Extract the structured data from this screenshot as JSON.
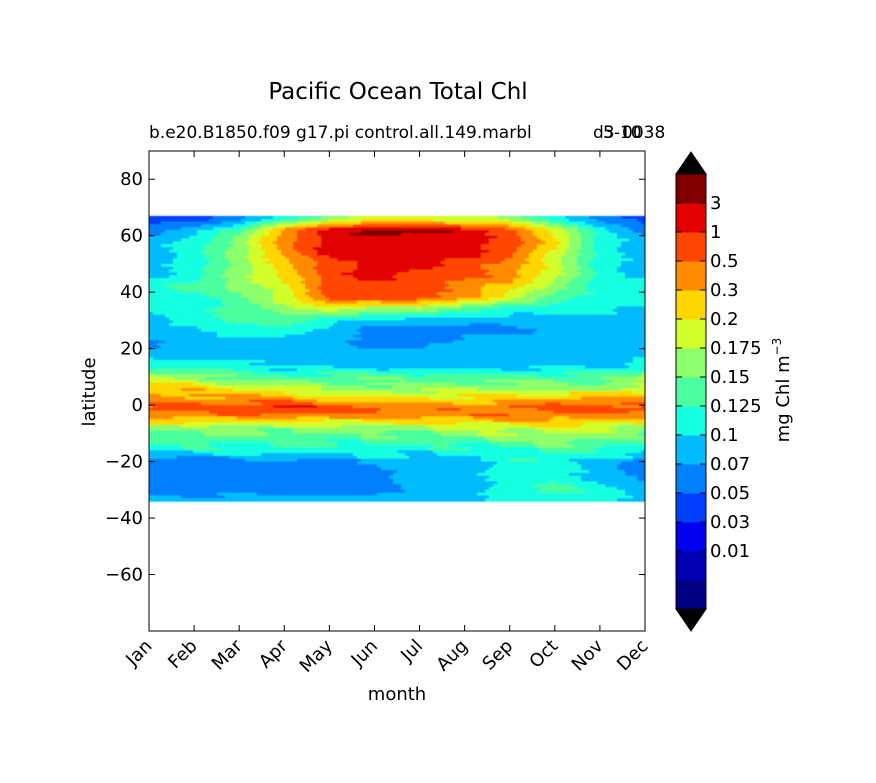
{
  "chart_data": {
    "type": "heatmap",
    "title": "Pacific Ocean Total Chl",
    "subtitle_left": "b.e20.B1850.f09 g17.pi control.all.149.marbl",
    "subtitle_right": "5-10",
    "subtitle_overlap": "d3",
    "subtitle_tail": "0038",
    "xlabel": "month",
    "ylabel": "latitude",
    "x_ticks": [
      "Jan",
      "Feb",
      "Mar",
      "Apr",
      "May",
      "Jun",
      "Jul",
      "Aug",
      "Sep",
      "Oct",
      "Nov",
      "Dec"
    ],
    "x_range": [
      0,
      11
    ],
    "y_ticks": [
      80,
      60,
      40,
      20,
      0,
      -20,
      -40,
      -60
    ],
    "y_range": [
      -80,
      90
    ],
    "data_lat_range": [
      -34,
      67
    ],
    "colorbar": {
      "label": "mg Chl m",
      "label_exponent": "−3",
      "tick_labels": [
        "3",
        "1",
        "0.5",
        "0.3",
        "0.2",
        "0.175",
        "0.15",
        "0.125",
        "0.1",
        "0.07",
        "0.05",
        "0.03",
        "0.01"
      ],
      "colors": [
        "#000080",
        "#0000b2",
        "#0000f1",
        "#0041ff",
        "#0080ff",
        "#00bcff",
        "#16ffe1",
        "#4aff9f",
        "#8cff6a",
        "#d2ff2a",
        "#ffd600",
        "#ff8c00",
        "#ff4600",
        "#e20000",
        "#800000"
      ],
      "over_color": "#000000",
      "under_color": "#000000"
    },
    "bands": [
      {
        "lat": 66,
        "level": [
          3,
          3,
          4,
          6,
          8,
          9,
          9,
          9,
          8,
          6,
          4,
          3
        ]
      },
      {
        "lat": 62,
        "level": [
          4,
          5,
          7,
          11,
          13,
          14,
          14,
          13,
          12,
          9,
          6,
          4
        ]
      },
      {
        "lat": 58,
        "level": [
          5,
          6,
          8,
          11,
          13,
          13,
          13,
          13,
          12,
          10,
          6,
          5
        ]
      },
      {
        "lat": 54,
        "level": [
          5,
          6,
          8,
          11,
          13,
          13,
          13,
          13,
          12,
          9,
          6,
          5
        ]
      },
      {
        "lat": 50,
        "level": [
          5,
          6,
          8,
          10,
          12,
          13,
          13,
          12,
          11,
          9,
          6,
          5
        ]
      },
      {
        "lat": 46,
        "level": [
          5,
          6,
          8,
          10,
          12,
          13,
          12,
          12,
          11,
          9,
          6,
          5
        ]
      },
      {
        "lat": 42,
        "level": [
          6,
          7,
          8,
          9,
          12,
          12,
          12,
          11,
          10,
          8,
          6,
          6
        ]
      },
      {
        "lat": 38,
        "level": [
          6,
          6,
          7,
          9,
          12,
          12,
          12,
          11,
          9,
          7,
          6,
          6
        ]
      },
      {
        "lat": 34,
        "level": [
          6,
          6,
          7,
          8,
          9,
          8,
          8,
          7,
          6,
          6,
          6,
          5
        ]
      },
      {
        "lat": 30,
        "level": [
          5,
          6,
          7,
          7,
          6,
          5,
          5,
          5,
          5,
          5,
          5,
          5
        ]
      },
      {
        "lat": 26,
        "level": [
          5,
          5,
          6,
          6,
          5,
          4,
          4,
          4,
          4,
          5,
          5,
          5
        ]
      },
      {
        "lat": 22,
        "level": [
          4,
          5,
          5,
          5,
          5,
          4,
          4,
          5,
          5,
          5,
          5,
          5
        ]
      },
      {
        "lat": 18,
        "level": [
          5,
          5,
          5,
          5,
          5,
          5,
          5,
          5,
          5,
          5,
          5,
          5
        ]
      },
      {
        "lat": 14,
        "level": [
          6,
          6,
          6,
          5,
          5,
          5,
          5,
          5,
          5,
          5,
          5,
          6
        ]
      },
      {
        "lat": 10,
        "level": [
          9,
          8,
          7,
          7,
          7,
          7,
          7,
          7,
          7,
          7,
          7,
          8
        ]
      },
      {
        "lat": 6,
        "level": [
          10,
          10,
          9,
          9,
          8,
          8,
          8,
          8,
          8,
          8,
          8,
          9
        ]
      },
      {
        "lat": 2,
        "level": [
          11,
          11,
          11,
          11,
          10,
          10,
          10,
          10,
          10,
          11,
          11,
          11
        ]
      },
      {
        "lat": -1,
        "level": [
          12,
          12,
          12,
          13,
          12,
          12,
          11,
          11,
          12,
          12,
          12,
          12
        ]
      },
      {
        "lat": -4,
        "level": [
          11,
          11,
          11,
          11,
          11,
          11,
          11,
          11,
          11,
          11,
          11,
          11
        ]
      },
      {
        "lat": -8,
        "level": [
          8,
          8,
          8,
          8,
          8,
          8,
          8,
          9,
          9,
          9,
          9,
          8
        ]
      },
      {
        "lat": -12,
        "level": [
          7,
          7,
          7,
          7,
          7,
          7,
          7,
          7,
          8,
          8,
          8,
          7
        ]
      },
      {
        "lat": -16,
        "level": [
          6,
          6,
          6,
          6,
          6,
          6,
          6,
          6,
          6,
          7,
          6,
          6
        ]
      },
      {
        "lat": -20,
        "level": [
          4,
          4,
          4,
          4,
          4,
          5,
          5,
          5,
          6,
          6,
          5,
          4
        ]
      },
      {
        "lat": -25,
        "level": [
          4,
          4,
          4,
          4,
          4,
          4,
          5,
          5,
          6,
          6,
          5,
          4
        ]
      },
      {
        "lat": -30,
        "level": [
          4,
          4,
          4,
          4,
          4,
          4,
          5,
          5,
          6,
          7,
          6,
          5
        ]
      },
      {
        "lat": -34,
        "level": [
          5,
          5,
          5,
          5,
          5,
          5,
          5,
          5,
          6,
          6,
          6,
          5
        ]
      }
    ]
  }
}
